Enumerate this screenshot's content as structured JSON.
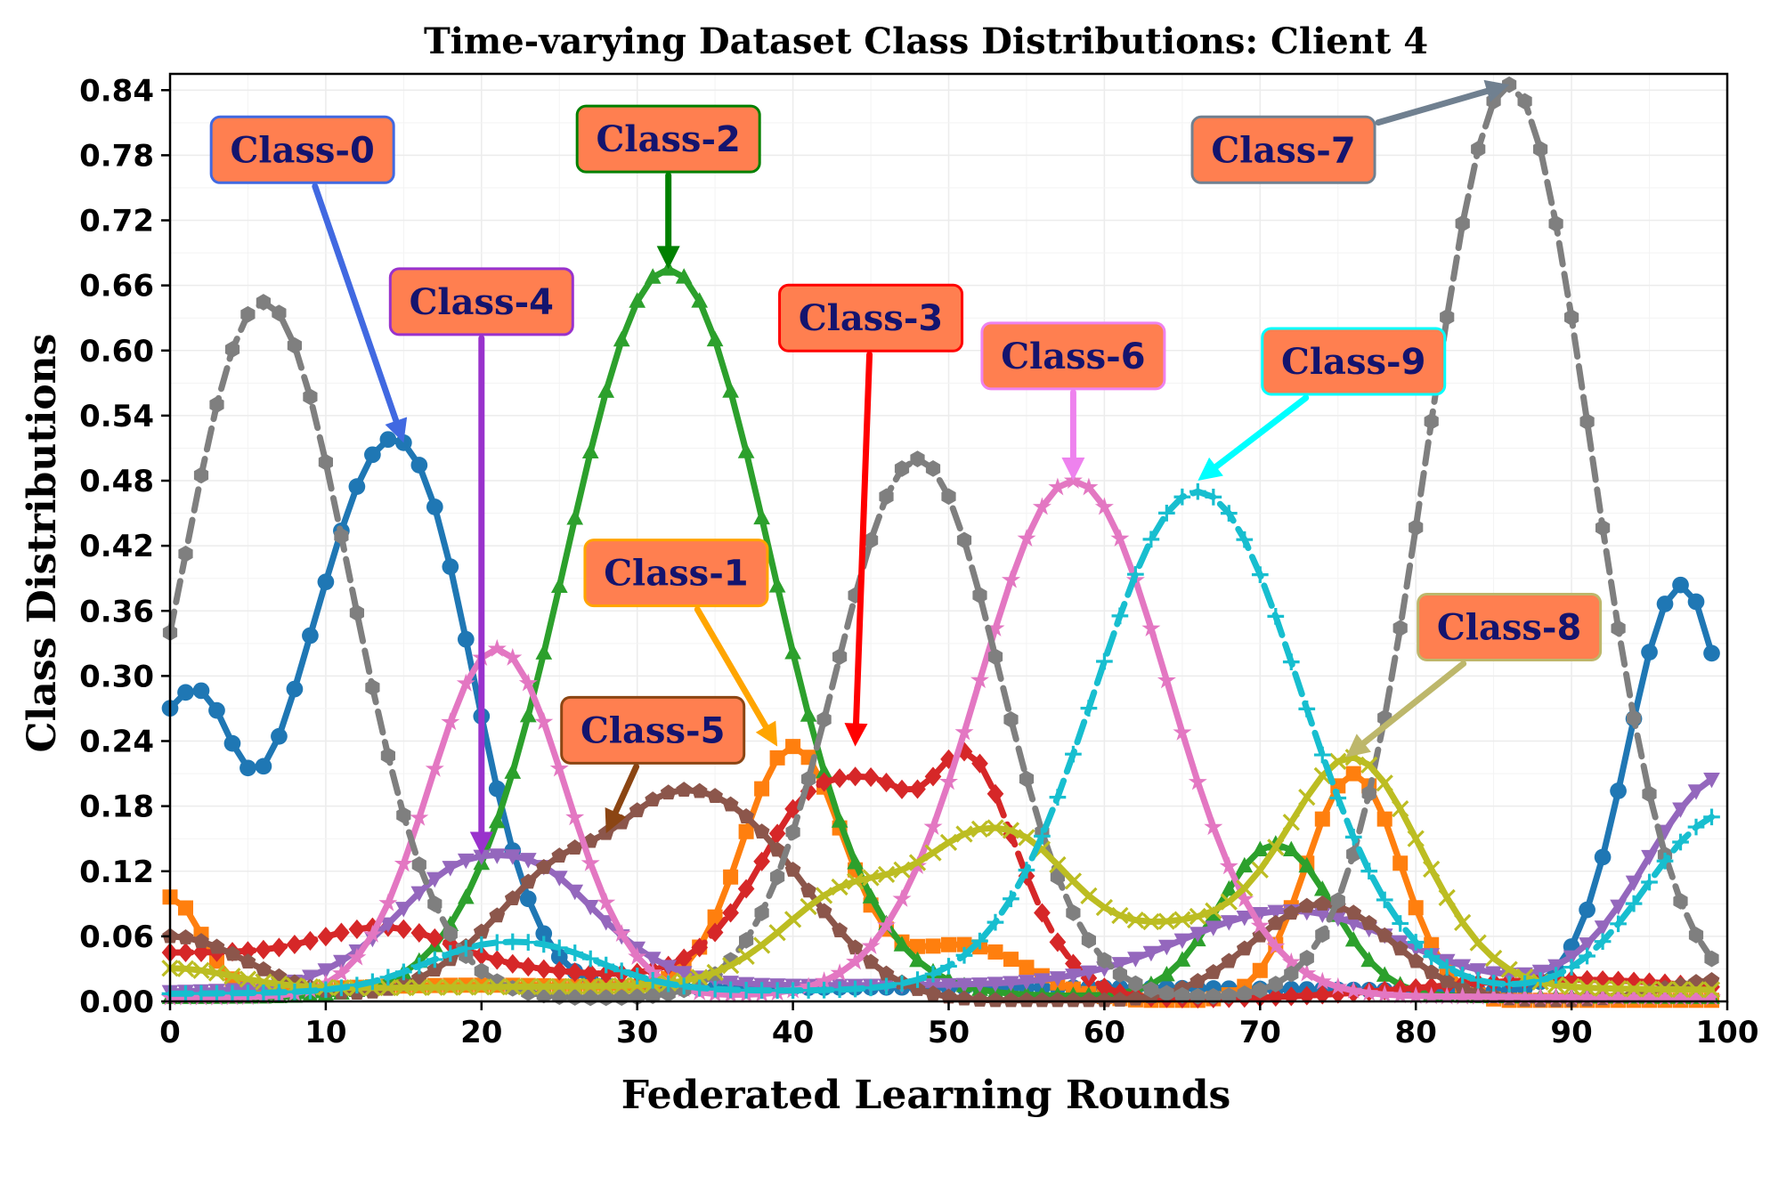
{
  "chart_data": {
    "type": "line",
    "title": "Time-varying Dataset Class Distributions: Client 4",
    "xlabel": "Federated Learning Rounds",
    "ylabel": "Class Distributions",
    "xlim": [
      0,
      100
    ],
    "ylim": [
      0,
      0.855
    ],
    "x_ticks": [
      0,
      10,
      20,
      30,
      40,
      50,
      60,
      70,
      80,
      90,
      100
    ],
    "x_tick_labels": [
      "0",
      "10",
      "20",
      "30",
      "40",
      "50",
      "60",
      "70",
      "80",
      "90",
      "100"
    ],
    "y_ticks": [
      0,
      0.06,
      0.12,
      0.18,
      0.24,
      0.3,
      0.36,
      0.42,
      0.48,
      0.54,
      0.6,
      0.66,
      0.72,
      0.78,
      0.84
    ],
    "y_tick_labels": [
      "0.00",
      "0.06",
      "0.12",
      "0.18",
      "0.24",
      "0.30",
      "0.36",
      "0.42",
      "0.48",
      "0.54",
      "0.60",
      "0.66",
      "0.72",
      "0.78",
      "0.84"
    ],
    "grid": true,
    "x_step": 1,
    "x_count": 100,
    "series": [
      {
        "name": "Class-0",
        "color": "#1f77b4",
        "marker": "circle",
        "dash": "solid",
        "components": [
          {
            "a": 0.27,
            "mu": 0,
            "sigma": 3.5
          },
          {
            "a": 0.22,
            "mu": 5,
            "sigma": 5
          },
          {
            "a": 0.515,
            "mu": 15,
            "sigma": 4.2
          },
          {
            "a": 0.013,
            "mu": 50,
            "sigma": 40
          },
          {
            "a": 0.335,
            "mu": 96.5,
            "sigma": 3.2
          }
        ],
        "anchors": [
          [
            0,
            0.28
          ],
          [
            5,
            0.225
          ],
          [
            15,
            0.515
          ],
          [
            96,
            0.34
          ],
          [
            99,
            0.32
          ]
        ]
      },
      {
        "name": "Class-1",
        "color": "#ff7f0e",
        "marker": "square",
        "dash": "solid",
        "components": [
          {
            "a": 0.09,
            "mu": 0,
            "sigma": 2
          },
          {
            "a": 0.015,
            "mu": 20,
            "sigma": 15
          },
          {
            "a": 0.235,
            "mu": 40,
            "sigma": 3.2
          },
          {
            "a": 0.05,
            "mu": 51,
            "sigma": 4
          },
          {
            "a": 0.21,
            "mu": 76,
            "sigma": 3
          }
        ],
        "anchors": [
          [
            40,
            0.235
          ],
          [
            76,
            0.21
          ]
        ]
      },
      {
        "name": "Class-2",
        "color": "#2ca02c",
        "marker": "triangle",
        "dash": "solid",
        "components": [
          {
            "a": 0.675,
            "mu": 32,
            "sigma": 6.5
          },
          {
            "a": 0.145,
            "mu": 71,
            "sigma": 3.5
          },
          {
            "a": 0.005,
            "mu": 50,
            "sigma": 60
          }
        ],
        "anchors": [
          [
            32,
            0.675
          ],
          [
            71,
            0.145
          ]
        ]
      },
      {
        "name": "Class-3",
        "color": "#d62728",
        "marker": "diamond",
        "dash": "dashed",
        "components": [
          {
            "a": 0.045,
            "mu": 0,
            "sigma": 25
          },
          {
            "a": 0.03,
            "mu": 14,
            "sigma": 4
          },
          {
            "a": 0.235,
            "mu": 44,
            "sigma": 5
          },
          {
            "a": 0.2,
            "mu": 50,
            "sigma": 4
          },
          {
            "a": 0.02,
            "mu": 90,
            "sigma": 10
          }
        ],
        "anchors": [
          [
            44,
            0.235
          ],
          [
            48,
            0.21
          ]
        ]
      },
      {
        "name": "Class-4",
        "color": "#9467bd",
        "marker": "triangle-down",
        "dash": "solid",
        "components": [
          {
            "a": 0.135,
            "mu": 21,
            "sigma": 5.5
          },
          {
            "a": 0.07,
            "mu": 72,
            "sigma": 7
          },
          {
            "a": 0.205,
            "mu": 100,
            "sigma": 5
          },
          {
            "a": 0.015,
            "mu": 50,
            "sigma": 50
          }
        ],
        "anchors": [
          [
            21,
            0.135
          ],
          [
            99,
            0.205
          ]
        ]
      },
      {
        "name": "Class-5",
        "color": "#8c564b",
        "marker": "pentagon",
        "dash": "solid",
        "components": [
          {
            "a": 0.06,
            "mu": 0,
            "sigma": 5
          },
          {
            "a": 0.155,
            "mu": 28,
            "sigma": 6
          },
          {
            "a": 0.12,
            "mu": 37,
            "sigma": 5
          },
          {
            "a": 0.09,
            "mu": 74,
            "sigma": 4.5
          },
          {
            "a": 0.02,
            "mu": 100,
            "sigma": 4
          }
        ],
        "anchors": [
          [
            28,
            0.155
          ],
          [
            74,
            0.09
          ]
        ]
      },
      {
        "name": "Class-6",
        "color": "#e377c2",
        "marker": "star",
        "dash": "solid",
        "components": [
          {
            "a": 0.325,
            "mu": 21,
            "sigma": 4.3
          },
          {
            "a": 0.48,
            "mu": 58,
            "sigma": 6
          },
          {
            "a": 0.005,
            "mu": 50,
            "sigma": 60
          }
        ],
        "anchors": [
          [
            21,
            0.325
          ],
          [
            58,
            0.48
          ]
        ]
      },
      {
        "name": "Class-7",
        "color": "#7f7f7f",
        "marker": "hexagon",
        "dash": "dashed",
        "components": [
          {
            "a": 0.645,
            "mu": 6,
            "sigma": 5.5
          },
          {
            "a": 0.5,
            "mu": 48,
            "sigma": 5.2
          },
          {
            "a": 0.845,
            "mu": 86,
            "sigma": 5.2
          },
          {
            "a": 0.003,
            "mu": 50,
            "sigma": 60
          }
        ],
        "anchors": [
          [
            0,
            0.34
          ],
          [
            6,
            0.645
          ],
          [
            48,
            0.5
          ],
          [
            86,
            0.845
          ]
        ]
      },
      {
        "name": "Class-8",
        "color": "#bcbd22",
        "marker": "x",
        "dash": "solid",
        "components": [
          {
            "a": 0.02,
            "mu": 0,
            "sigma": 4
          },
          {
            "a": 0.09,
            "mu": 44,
            "sigma": 4.5
          },
          {
            "a": 0.14,
            "mu": 53,
            "sigma": 3.5
          },
          {
            "a": 0.06,
            "mu": 62,
            "sigma": 6
          },
          {
            "a": 0.2,
            "mu": 76,
            "sigma": 4.5
          },
          {
            "a": 0.015,
            "mu": 50,
            "sigma": 60
          }
        ],
        "anchors": [
          [
            53,
            0.16
          ],
          [
            62,
            0.075
          ],
          [
            76,
            0.225
          ]
        ]
      },
      {
        "name": "Class-9",
        "color": "#17becf",
        "marker": "plus",
        "dash": "dashed",
        "components": [
          {
            "a": 0.05,
            "mu": 22,
            "sigma": 5
          },
          {
            "a": 0.465,
            "mu": 66,
            "sigma": 6.5
          },
          {
            "a": 0.17,
            "mu": 100,
            "sigma": 5
          },
          {
            "a": 0.01,
            "mu": 50,
            "sigma": 60
          }
        ],
        "anchors": [
          [
            22,
            0.055
          ],
          [
            66,
            0.47
          ],
          [
            99,
            0.17
          ]
        ]
      }
    ],
    "annotations": [
      {
        "prefix": "Class-",
        "num": "0",
        "target": [
          15,
          0.515
        ],
        "box_x": 8.5,
        "box_y": 0.785,
        "face": "#ff7f50",
        "edge": "#4169e1"
      },
      {
        "prefix": "Class-",
        "num": "1",
        "target": [
          39,
          0.235
        ],
        "box_x": 32.5,
        "box_y": 0.395,
        "face": "#ff7f50",
        "edge": "#ffa500"
      },
      {
        "prefix": "Class-",
        "num": "2",
        "target": [
          32,
          0.675
        ],
        "box_x": 32,
        "box_y": 0.795,
        "face": "#ff7f50",
        "edge": "#008000"
      },
      {
        "prefix": "Class-",
        "num": "3",
        "target": [
          44,
          0.235
        ],
        "box_x": 45,
        "box_y": 0.63,
        "face": "#ff7f50",
        "edge": "#ff0000"
      },
      {
        "prefix": "Class-",
        "num": "4",
        "target": [
          20,
          0.135
        ],
        "box_x": 20,
        "box_y": 0.645,
        "face": "#ff7f50",
        "edge": "#9932cc"
      },
      {
        "prefix": "Class-",
        "num": "5",
        "target": [
          28,
          0.155
        ],
        "box_x": 31,
        "box_y": 0.25,
        "face": "#ff7f50",
        "edge": "#8b4513"
      },
      {
        "prefix": "Class-",
        "num": "6",
        "target": [
          58,
          0.48
        ],
        "box_x": 58,
        "box_y": 0.595,
        "face": "#ff7f50",
        "edge": "#ee82ee"
      },
      {
        "prefix": "Class-",
        "num": "7",
        "target": [
          86,
          0.845
        ],
        "box_x": 71.5,
        "box_y": 0.785,
        "face": "#ff7f50",
        "edge": "#708090"
      },
      {
        "prefix": "Class-",
        "num": "8",
        "target": [
          75.5,
          0.225
        ],
        "box_x": 86,
        "box_y": 0.345,
        "face": "#ff7f50",
        "edge": "#bdb76b"
      },
      {
        "prefix": "Class-",
        "num": "9",
        "target": [
          66,
          0.48
        ],
        "box_x": 76,
        "box_y": 0.59,
        "face": "#ff7f50",
        "edge": "#00ffff"
      }
    ]
  }
}
